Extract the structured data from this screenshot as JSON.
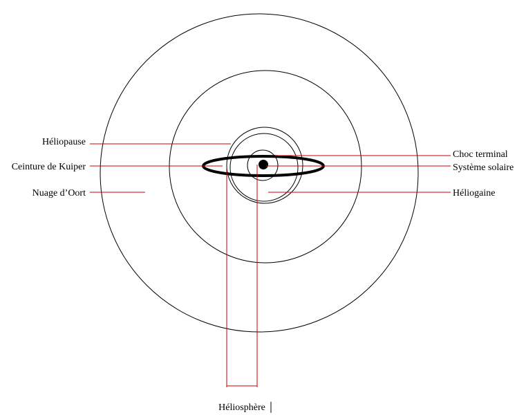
{
  "diagram": {
    "labels": {
      "heliopause": "Héliopause",
      "kuiper_belt": "Ceinture de Kuiper",
      "oort_cloud": "Nuage d’Oort",
      "termination_shock": "Choc terminal",
      "solar_system": "Système solaire",
      "heliosheath": "Héliogaine",
      "heliosphere": "Héliosphère"
    },
    "colors": {
      "leader_line": "#cc0000",
      "outline": "#000000",
      "background": "#ffffff"
    }
  }
}
